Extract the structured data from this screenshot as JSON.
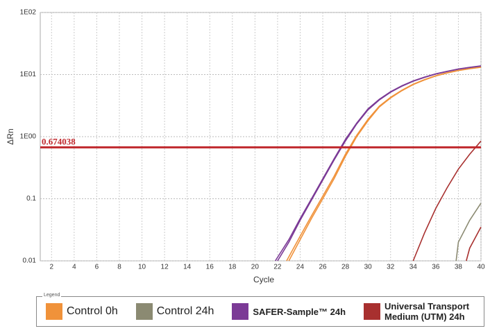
{
  "chart_data": {
    "type": "line",
    "log_y": true,
    "grid": true,
    "x_label": "Cycle",
    "y_label": "ΔRn",
    "legend_title": "Legend",
    "xlim": [
      1,
      40
    ],
    "xticks": [
      2,
      4,
      6,
      8,
      10,
      12,
      14,
      16,
      18,
      20,
      22,
      24,
      26,
      28,
      30,
      32,
      34,
      36,
      38,
      40
    ],
    "ylim": [
      0.01,
      100
    ],
    "yticks": [
      {
        "value": 100,
        "label": "1E02"
      },
      {
        "value": 10,
        "label": "1E01"
      },
      {
        "value": 1,
        "label": "1E00"
      },
      0.1,
      0.01
    ],
    "threshold": 0.674038,
    "threshold_color": "#c0282d",
    "series": [
      {
        "name": "Control 0h",
        "color": "#f0923a",
        "replicates": [
          {
            "x": [
              23,
              24,
              25,
              26,
              27,
              28,
              29,
              30,
              31,
              32,
              33,
              34,
              35,
              36,
              37,
              38,
              39,
              40
            ],
            "values": [
              0.01,
              0.022,
              0.048,
              0.1,
              0.21,
              0.48,
              1.0,
              1.8,
              3.0,
              4.2,
              5.5,
              6.9,
              8.2,
              9.5,
              10.6,
              11.6,
              12.4,
              13.1
            ]
          },
          {
            "x": [
              22.8,
              24,
              25,
              26,
              27,
              28,
              29,
              30,
              31,
              32,
              33,
              34,
              35,
              36,
              37,
              38,
              39,
              40
            ],
            "values": [
              0.01,
              0.025,
              0.053,
              0.11,
              0.23,
              0.52,
              1.05,
              1.9,
              3.1,
              4.3,
              5.6,
              7.0,
              8.3,
              9.6,
              10.7,
              11.7,
              12.5,
              13.2
            ]
          }
        ]
      },
      {
        "name": "Control 24h",
        "color": "#8b8a72",
        "replicates": [
          {
            "x": [
              37.8,
              38,
              39,
              40
            ],
            "values": [
              0.01,
              0.02,
              0.045,
              0.085
            ]
          }
        ]
      },
      {
        "name": "SAFER-Sample™ 24h",
        "color": "#7b3a96",
        "replicates": [
          {
            "x": [
              22,
              23,
              24,
              25,
              26,
              27,
              28,
              29,
              30,
              31,
              32,
              33,
              34,
              35,
              36,
              37,
              38,
              39,
              40
            ],
            "values": [
              0.01,
              0.02,
              0.045,
              0.095,
              0.2,
              0.42,
              0.85,
              1.6,
              2.7,
              3.9,
              5.2,
              6.5,
              7.8,
              9.0,
              10.2,
              11.2,
              12.2,
              13.0,
              13.7
            ]
          },
          {
            "x": [
              21.8,
              23,
              24,
              25,
              26,
              27,
              28,
              29,
              30,
              31,
              32,
              33,
              34,
              35,
              36,
              37,
              38,
              39,
              40
            ],
            "values": [
              0.01,
              0.022,
              0.048,
              0.1,
              0.21,
              0.44,
              0.9,
              1.65,
              2.8,
              4.0,
              5.3,
              6.6,
              7.9,
              9.1,
              10.3,
              11.3,
              12.3,
              13.1,
              13.8
            ]
          }
        ]
      },
      {
        "name": "Universal Transport Medium (UTM) 24h",
        "color": "#a8302f",
        "replicates": [
          {
            "x": [
              34,
              35,
              36,
              37,
              38,
              39,
              40
            ],
            "values": [
              0.01,
              0.028,
              0.07,
              0.15,
              0.3,
              0.52,
              0.85
            ]
          },
          {
            "x": [
              38.7,
              39,
              40
            ],
            "values": [
              0.01,
              0.016,
              0.035
            ]
          }
        ]
      }
    ]
  }
}
